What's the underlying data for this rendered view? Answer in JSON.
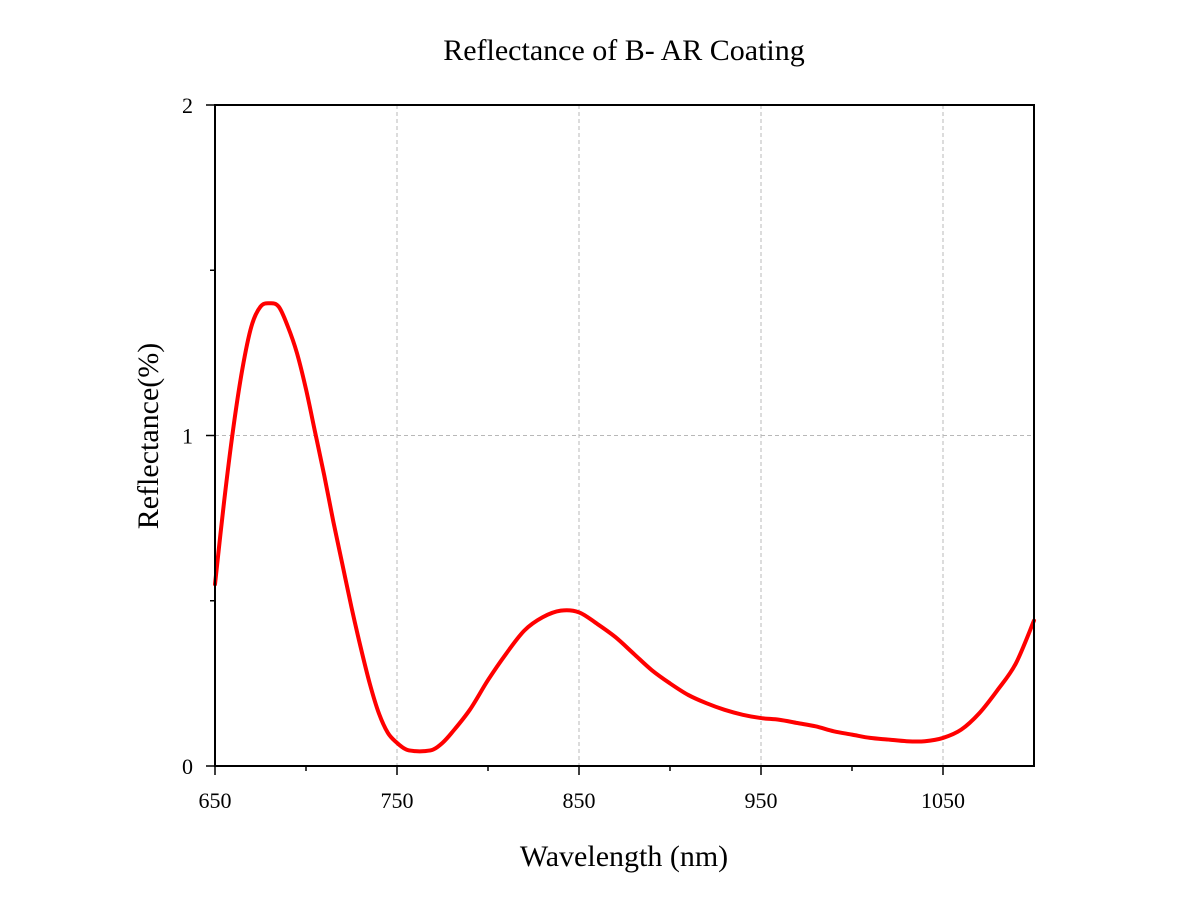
{
  "chart_data": {
    "type": "line",
    "title": "Reflectance of B- AR Coating",
    "xlabel": "Wavelength (nm)",
    "ylabel": "Reflectance(%)",
    "xlim": [
      650,
      1100
    ],
    "ylim": [
      0,
      2
    ],
    "x_ticks": [
      650,
      750,
      850,
      950,
      1050
    ],
    "x_minor_ticks": [
      700,
      800,
      900,
      1000
    ],
    "y_ticks": [
      0,
      1,
      2
    ],
    "y_minor_ticks": [
      0.5,
      1.5
    ],
    "grid": true,
    "legend": "none",
    "series": [
      {
        "color": "#ff0000",
        "x": [
          650,
          655,
          660,
          665,
          670,
          675,
          680,
          685,
          690,
          695,
          700,
          705,
          710,
          715,
          720,
          725,
          730,
          735,
          740,
          745,
          750,
          755,
          760,
          765,
          770,
          775,
          780,
          790,
          800,
          810,
          820,
          830,
          840,
          850,
          860,
          870,
          880,
          890,
          900,
          910,
          920,
          930,
          940,
          950,
          960,
          970,
          980,
          990,
          1000,
          1010,
          1020,
          1030,
          1040,
          1050,
          1060,
          1070,
          1080,
          1090,
          1100
        ],
        "y": [
          0.55,
          0.8,
          1.02,
          1.2,
          1.33,
          1.39,
          1.4,
          1.39,
          1.33,
          1.25,
          1.14,
          1.01,
          0.88,
          0.74,
          0.61,
          0.48,
          0.36,
          0.25,
          0.16,
          0.1,
          0.07,
          0.05,
          0.045,
          0.045,
          0.05,
          0.07,
          0.1,
          0.17,
          0.26,
          0.34,
          0.41,
          0.45,
          0.47,
          0.465,
          0.43,
          0.39,
          0.34,
          0.29,
          0.25,
          0.215,
          0.19,
          0.17,
          0.155,
          0.145,
          0.14,
          0.13,
          0.12,
          0.105,
          0.095,
          0.085,
          0.08,
          0.075,
          0.075,
          0.085,
          0.11,
          0.16,
          0.23,
          0.31,
          0.44
        ]
      }
    ]
  }
}
